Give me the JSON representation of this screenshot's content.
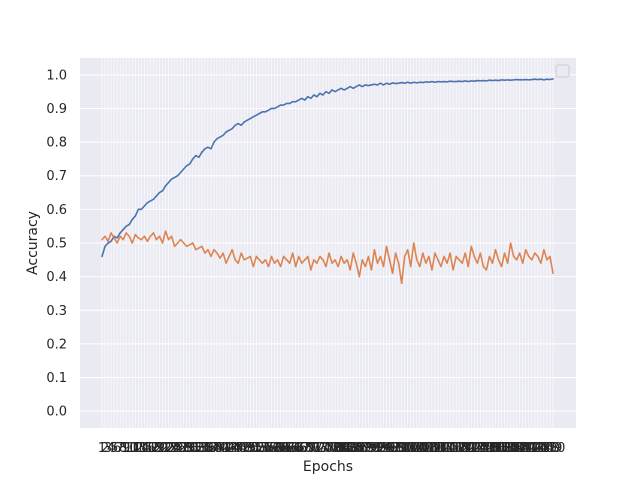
{
  "chart_data": {
    "type": "line",
    "xlabel": "Epochs",
    "ylabel": "Accuracy",
    "ylim": [
      -0.05,
      1.05
    ],
    "yticks": [
      "0.0",
      "0.1",
      "0.2",
      "0.3",
      "0.4",
      "0.5",
      "0.6",
      "0.7",
      "0.8",
      "0.9",
      "1.0"
    ],
    "epochs": 150,
    "xtick_labels_overlap": true,
    "grid": true,
    "legend": "top-right (empty)",
    "background": "#eaeaf2",
    "series_colors": [
      "#4c72b0",
      "#dd8452"
    ],
    "series": [
      {
        "values": [
          0.46,
          0.49,
          0.5,
          0.505,
          0.52,
          0.515,
          0.53,
          0.54,
          0.55,
          0.555,
          0.57,
          0.58,
          0.6,
          0.6,
          0.61,
          0.62,
          0.625,
          0.63,
          0.64,
          0.65,
          0.655,
          0.67,
          0.68,
          0.69,
          0.695,
          0.7,
          0.71,
          0.72,
          0.73,
          0.735,
          0.75,
          0.76,
          0.755,
          0.77,
          0.78,
          0.785,
          0.78,
          0.8,
          0.81,
          0.815,
          0.82,
          0.83,
          0.835,
          0.84,
          0.85,
          0.855,
          0.85,
          0.86,
          0.865,
          0.87,
          0.875,
          0.88,
          0.885,
          0.89,
          0.89,
          0.895,
          0.9,
          0.9,
          0.905,
          0.91,
          0.91,
          0.915,
          0.915,
          0.92,
          0.92,
          0.925,
          0.93,
          0.925,
          0.935,
          0.93,
          0.94,
          0.935,
          0.945,
          0.94,
          0.95,
          0.945,
          0.955,
          0.95,
          0.955,
          0.96,
          0.955,
          0.96,
          0.965,
          0.96,
          0.965,
          0.97,
          0.965,
          0.97,
          0.968,
          0.97,
          0.972,
          0.97,
          0.975,
          0.97,
          0.975,
          0.972,
          0.976,
          0.974,
          0.975,
          0.977,
          0.975,
          0.978,
          0.975,
          0.978,
          0.976,
          0.978,
          0.977,
          0.979,
          0.978,
          0.98,
          0.978,
          0.98,
          0.979,
          0.98,
          0.979,
          0.981,
          0.98,
          0.98,
          0.981,
          0.98,
          0.982,
          0.98,
          0.982,
          0.981,
          0.983,
          0.982,
          0.983,
          0.982,
          0.984,
          0.983,
          0.984,
          0.983,
          0.985,
          0.984,
          0.985,
          0.984,
          0.985,
          0.986,
          0.985,
          0.985,
          0.986,
          0.985,
          0.986,
          0.987,
          0.986,
          0.987,
          0.985,
          0.987,
          0.986,
          0.988
        ]
      },
      {
        "values": [
          0.51,
          0.52,
          0.505,
          0.53,
          0.515,
          0.5,
          0.52,
          0.51,
          0.53,
          0.52,
          0.5,
          0.525,
          0.515,
          0.51,
          0.52,
          0.505,
          0.52,
          0.53,
          0.51,
          0.52,
          0.5,
          0.535,
          0.51,
          0.52,
          0.49,
          0.5,
          0.51,
          0.5,
          0.49,
          0.495,
          0.5,
          0.48,
          0.485,
          0.49,
          0.47,
          0.48,
          0.46,
          0.48,
          0.47,
          0.455,
          0.47,
          0.44,
          0.46,
          0.48,
          0.45,
          0.44,
          0.47,
          0.45,
          0.455,
          0.46,
          0.43,
          0.46,
          0.45,
          0.44,
          0.45,
          0.43,
          0.46,
          0.44,
          0.45,
          0.43,
          0.46,
          0.45,
          0.44,
          0.47,
          0.43,
          0.46,
          0.44,
          0.45,
          0.46,
          0.42,
          0.45,
          0.44,
          0.46,
          0.45,
          0.43,
          0.47,
          0.44,
          0.45,
          0.43,
          0.46,
          0.44,
          0.45,
          0.42,
          0.47,
          0.44,
          0.4,
          0.45,
          0.43,
          0.46,
          0.42,
          0.48,
          0.44,
          0.46,
          0.43,
          0.49,
          0.45,
          0.41,
          0.47,
          0.44,
          0.38,
          0.46,
          0.48,
          0.43,
          0.5,
          0.45,
          0.43,
          0.47,
          0.44,
          0.46,
          0.42,
          0.47,
          0.45,
          0.43,
          0.46,
          0.44,
          0.47,
          0.42,
          0.46,
          0.45,
          0.44,
          0.47,
          0.43,
          0.49,
          0.46,
          0.44,
          0.47,
          0.43,
          0.42,
          0.46,
          0.44,
          0.48,
          0.45,
          0.43,
          0.47,
          0.44,
          0.5,
          0.46,
          0.45,
          0.47,
          0.44,
          0.48,
          0.46,
          0.45,
          0.47,
          0.46,
          0.44,
          0.48,
          0.45,
          0.46,
          0.41
        ]
      }
    ]
  }
}
